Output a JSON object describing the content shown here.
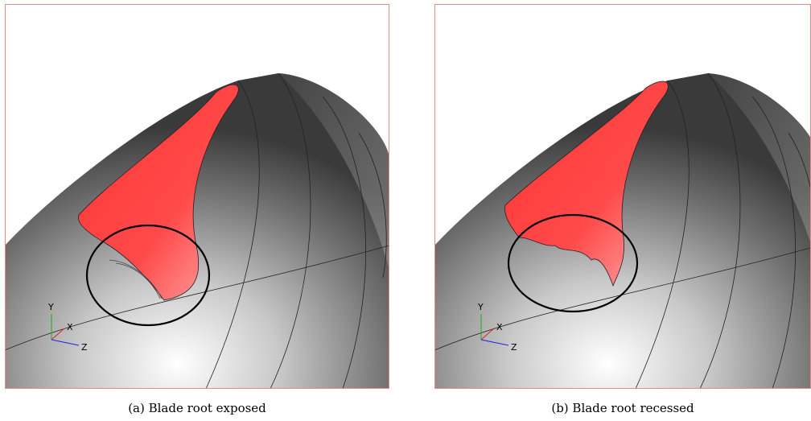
{
  "panels": [
    {
      "caption": "(a) Blade root exposed",
      "axes": {
        "y": "Y",
        "x": "X",
        "z": "Z"
      }
    },
    {
      "caption": "(b) Blade root recessed",
      "axes": {
        "y": "Y",
        "x": "X",
        "z": "Z"
      }
    }
  ]
}
